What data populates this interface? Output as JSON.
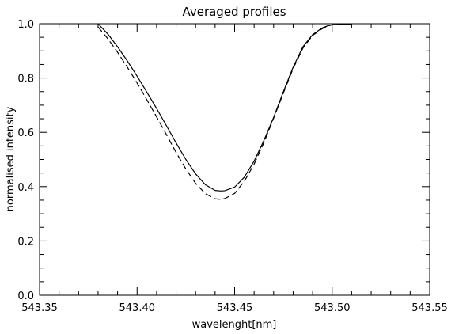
{
  "chart_data": {
    "type": "line",
    "title": "Averaged profiles",
    "xlabel": "wavelenght[nm]",
    "ylabel": "normalised intensity",
    "xlim": [
      543.35,
      543.55
    ],
    "ylim": [
      0.0,
      1.0
    ],
    "x_ticks": [
      "543.35",
      "543.40",
      "543.45",
      "543.50",
      "543.55"
    ],
    "y_ticks": [
      "0.0",
      "0.2",
      "0.4",
      "0.6",
      "0.8",
      "1.0"
    ],
    "grid": false,
    "legend": "none",
    "series": [
      {
        "style": "solid",
        "color": "#000000",
        "x": [
          543.38,
          543.385,
          543.39,
          543.395,
          543.4,
          543.405,
          543.41,
          543.415,
          543.42,
          543.425,
          543.43,
          543.435,
          543.44,
          543.443,
          543.445,
          543.45,
          543.455,
          543.46,
          543.465,
          543.47,
          543.475,
          543.48,
          543.485,
          543.49,
          543.495,
          543.498,
          543.5,
          543.505,
          543.51
        ],
        "y": [
          1.0,
          0.962,
          0.915,
          0.863,
          0.807,
          0.748,
          0.688,
          0.625,
          0.561,
          0.5,
          0.447,
          0.407,
          0.386,
          0.384,
          0.385,
          0.398,
          0.435,
          0.494,
          0.57,
          0.655,
          0.75,
          0.84,
          0.915,
          0.96,
          0.985,
          0.993,
          0.996,
          0.997,
          0.997
        ]
      },
      {
        "style": "dashed",
        "color": "#000000",
        "x": [
          543.38,
          543.385,
          543.39,
          543.395,
          543.4,
          543.405,
          543.41,
          543.415,
          543.42,
          543.425,
          543.43,
          543.435,
          543.44,
          543.443,
          543.445,
          543.45,
          543.455,
          543.46,
          543.465,
          543.47,
          543.475,
          543.48,
          543.485,
          543.49,
          543.495,
          543.498,
          543.5,
          543.505,
          543.51
        ],
        "y": [
          0.988,
          0.945,
          0.895,
          0.84,
          0.782,
          0.72,
          0.657,
          0.592,
          0.526,
          0.465,
          0.412,
          0.374,
          0.355,
          0.353,
          0.356,
          0.375,
          0.42,
          0.483,
          0.562,
          0.652,
          0.745,
          0.835,
          0.91,
          0.957,
          0.982,
          0.992,
          0.996,
          0.997,
          0.997
        ]
      }
    ]
  }
}
